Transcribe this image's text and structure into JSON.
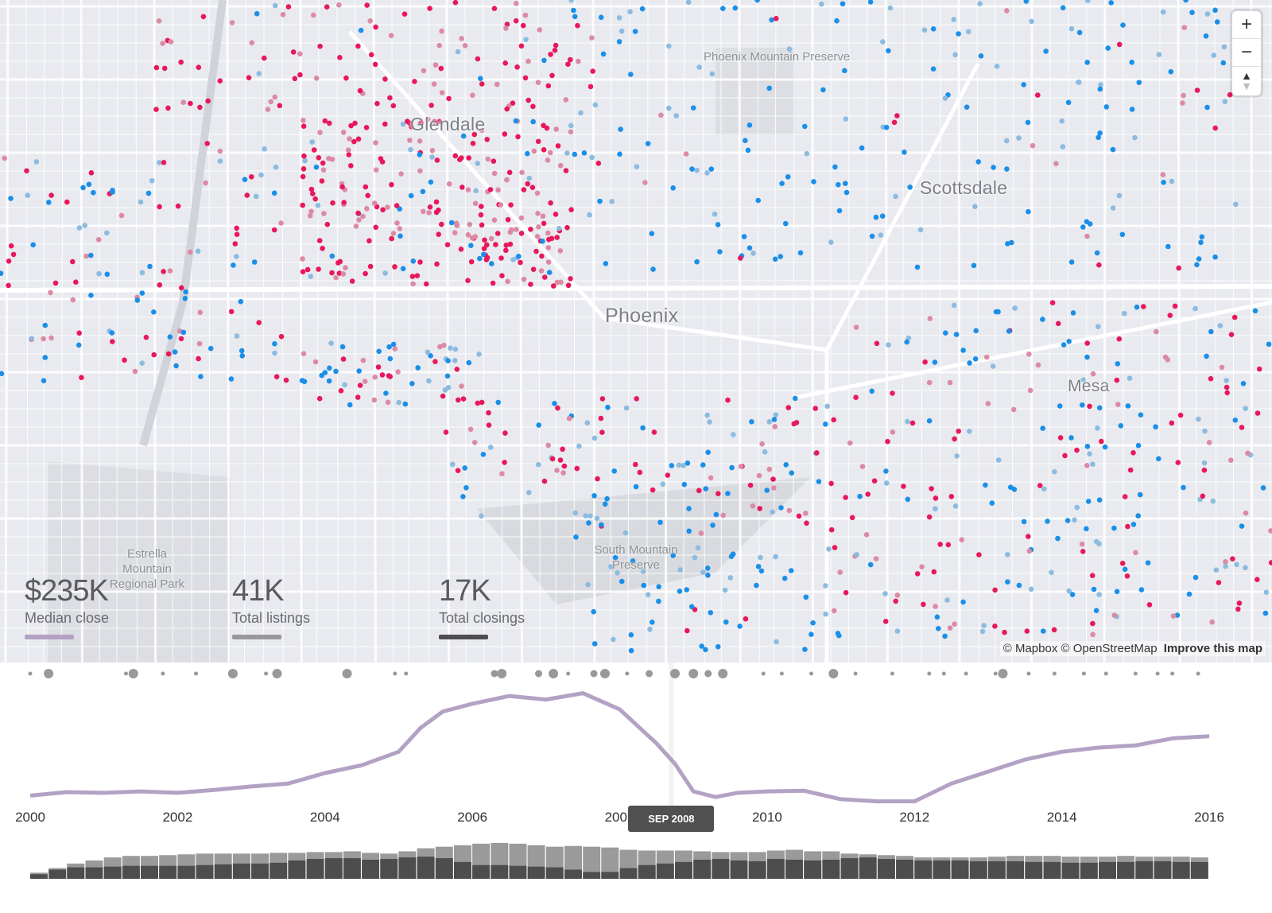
{
  "map": {
    "cities": [
      "Glendale",
      "Scottsdale",
      "Phoenix",
      "Mesa"
    ],
    "parks": [
      "Phoenix Mountain Preserve",
      "Estrella Mountain Regional Park",
      "South Mountain Preserve"
    ],
    "controls": {
      "zoom_in": "+",
      "zoom_out": "−",
      "compass_up": "▲",
      "compass_down": "▼"
    },
    "attribution": {
      "mapbox": "© Mapbox",
      "osm": "© OpenStreetMap",
      "improve": "Improve this map"
    },
    "colors": {
      "closing": "#e8185a",
      "listing": "#1a8fe8",
      "background": "#e8eaef"
    }
  },
  "stats": [
    {
      "value": "$235K",
      "label": "Median close",
      "color": "#b3a2c4"
    },
    {
      "value": "41K",
      "label": "Total listings",
      "color": "#999999"
    },
    {
      "value": "17K",
      "label": "Total closings",
      "color": "#4d4d4d"
    }
  ],
  "chart_data": {
    "type": "line",
    "x_ticks": [
      "2000",
      "2002",
      "2004",
      "2006",
      "2008",
      "2010",
      "2012",
      "2014",
      "2016"
    ],
    "xlim": [
      2000,
      2016
    ],
    "cursor": {
      "t": 2008.7,
      "label": "SEP 2008"
    },
    "median_close": {
      "name": "Median close ($K)",
      "ylim": [
        100,
        280
      ],
      "t": [
        2000,
        2000.5,
        2001,
        2001.5,
        2002,
        2002.5,
        2003,
        2003.5,
        2004,
        2004.5,
        2005,
        2005.3,
        2005.6,
        2006,
        2006.5,
        2007,
        2007.5,
        2008,
        2008.5,
        2008.75,
        2009,
        2009.3,
        2009.6,
        2010,
        2010.5,
        2011,
        2011.5,
        2012,
        2012.5,
        2013,
        2013.5,
        2014,
        2014.5,
        2015,
        2015.5,
        2016
      ],
      "values": [
        122,
        127,
        126,
        128,
        126,
        130,
        135,
        139,
        154,
        165,
        184,
        218,
        241,
        252,
        263,
        258,
        267,
        244,
        196,
        167,
        128,
        120,
        126,
        128,
        129,
        117,
        114,
        114,
        139,
        156,
        173,
        184,
        190,
        193,
        203,
        206
      ]
    },
    "bars": {
      "listings": [
        8,
        14,
        20,
        24,
        28,
        30,
        30,
        31,
        32,
        33,
        33,
        33,
        33,
        34,
        34,
        35,
        35,
        36,
        34,
        33,
        36,
        40,
        42,
        44,
        46,
        47,
        46,
        44,
        42,
        43,
        42,
        41,
        38,
        37,
        37,
        37,
        36,
        35,
        35,
        35,
        37,
        38,
        36,
        36,
        33,
        32,
        31,
        30,
        28,
        28,
        28,
        28,
        29,
        30,
        30,
        30,
        29,
        29,
        29,
        30,
        29,
        29,
        29,
        28
      ],
      "closings": [
        6,
        12,
        15,
        15,
        16,
        17,
        17,
        17,
        17,
        18,
        19,
        20,
        20,
        21,
        24,
        26,
        27,
        27,
        25,
        26,
        28,
        29,
        27,
        22,
        18,
        18,
        17,
        16,
        15,
        12,
        9,
        9,
        14,
        18,
        20,
        22,
        25,
        26,
        24,
        23,
        26,
        25,
        24,
        25,
        27,
        28,
        26,
        25,
        24,
        24,
        24,
        23,
        23,
        23,
        22,
        22,
        21,
        21,
        22,
        22,
        23,
        23,
        22,
        22
      ],
      "max": 50
    },
    "events": [
      {
        "t": 2000.0,
        "n": 1
      },
      {
        "t": 2000.25,
        "n": 3
      },
      {
        "t": 2001.3,
        "n": 1
      },
      {
        "t": 2001.4,
        "n": 3
      },
      {
        "t": 2001.8,
        "n": 1
      },
      {
        "t": 2002.25,
        "n": 1
      },
      {
        "t": 2002.75,
        "n": 3
      },
      {
        "t": 2003.2,
        "n": 1
      },
      {
        "t": 2003.35,
        "n": 3
      },
      {
        "t": 2004.3,
        "n": 3
      },
      {
        "t": 2004.95,
        "n": 1
      },
      {
        "t": 2005.1,
        "n": 1
      },
      {
        "t": 2006.3,
        "n": 2
      },
      {
        "t": 2006.4,
        "n": 3
      },
      {
        "t": 2006.9,
        "n": 2
      },
      {
        "t": 2007.1,
        "n": 3
      },
      {
        "t": 2007.3,
        "n": 1
      },
      {
        "t": 2007.65,
        "n": 2
      },
      {
        "t": 2007.8,
        "n": 3
      },
      {
        "t": 2008.1,
        "n": 1
      },
      {
        "t": 2008.4,
        "n": 2
      },
      {
        "t": 2008.75,
        "n": 3
      },
      {
        "t": 2009.0,
        "n": 3
      },
      {
        "t": 2009.2,
        "n": 2
      },
      {
        "t": 2009.4,
        "n": 3
      },
      {
        "t": 2009.95,
        "n": 1
      },
      {
        "t": 2010.2,
        "n": 1
      },
      {
        "t": 2010.6,
        "n": 1
      },
      {
        "t": 2010.9,
        "n": 3
      },
      {
        "t": 2011.2,
        "n": 1
      },
      {
        "t": 2011.7,
        "n": 1
      },
      {
        "t": 2012.2,
        "n": 1
      },
      {
        "t": 2012.4,
        "n": 1
      },
      {
        "t": 2012.7,
        "n": 1
      },
      {
        "t": 2013.1,
        "n": 1
      },
      {
        "t": 2013.2,
        "n": 3
      },
      {
        "t": 2013.55,
        "n": 1
      },
      {
        "t": 2013.9,
        "n": 1
      },
      {
        "t": 2014.3,
        "n": 1
      },
      {
        "t": 2014.6,
        "n": 1
      },
      {
        "t": 2015.0,
        "n": 1
      },
      {
        "t": 2015.3,
        "n": 1
      },
      {
        "t": 2015.5,
        "n": 1
      },
      {
        "t": 2015.85,
        "n": 1
      }
    ]
  }
}
